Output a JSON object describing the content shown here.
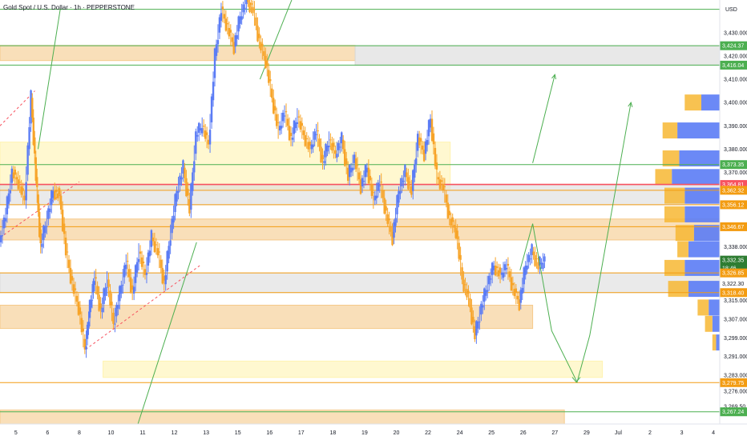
{
  "chart_data": {
    "type": "line",
    "title": "Gold Spot / U.S. Dollar · 1h · PEPPERSTONE",
    "currency": "USD",
    "ylim": [
      3262,
      3444
    ],
    "y_ticks": [
      3430,
      3420,
      3410,
      3400,
      3390,
      3380,
      3370,
      3338,
      3315,
      3307,
      3299,
      3291,
      3283,
      3276,
      3269.5
    ],
    "x_ticks": [
      {
        "label": "5",
        "x": 0.5
      },
      {
        "label": "6",
        "x": 1.5
      },
      {
        "label": "8",
        "x": 2.5
      },
      {
        "label": "10",
        "x": 3.5
      },
      {
        "label": "11",
        "x": 4.5
      },
      {
        "label": "12",
        "x": 5.5
      },
      {
        "label": "13",
        "x": 6.5
      },
      {
        "label": "15",
        "x": 7.5
      },
      {
        "label": "16",
        "x": 8.5
      },
      {
        "label": "17",
        "x": 9.5
      },
      {
        "label": "18",
        "x": 10.5
      },
      {
        "label": "19",
        "x": 11.5
      },
      {
        "label": "20",
        "x": 12.5
      },
      {
        "label": "22",
        "x": 13.5
      },
      {
        "label": "24",
        "x": 14.5
      },
      {
        "label": "25",
        "x": 15.5
      },
      {
        "label": "26",
        "x": 16.5
      },
      {
        "label": "27",
        "x": 17.5
      },
      {
        "label": "29",
        "x": 18.5
      },
      {
        "label": "Jul",
        "x": 19.5
      },
      {
        "label": "2",
        "x": 20.5
      },
      {
        "label": "3",
        "x": 21.5
      },
      {
        "label": "4",
        "x": 22.5
      }
    ],
    "series": [
      {
        "values": [
          [
            0,
            3340
          ],
          [
            0.2,
            3352
          ],
          [
            0.4,
            3370
          ],
          [
            0.6,
            3366
          ],
          [
            0.8,
            3358
          ],
          [
            1.0,
            3402
          ],
          [
            1.15,
            3368
          ],
          [
            1.3,
            3338
          ],
          [
            1.5,
            3350
          ],
          [
            1.7,
            3362
          ],
          [
            1.9,
            3360
          ],
          [
            2.1,
            3336
          ],
          [
            2.3,
            3322
          ],
          [
            2.5,
            3312
          ],
          [
            2.7,
            3294
          ],
          [
            2.85,
            3312
          ],
          [
            3.0,
            3325
          ],
          [
            3.2,
            3310
          ],
          [
            3.4,
            3324
          ],
          [
            3.6,
            3305
          ],
          [
            3.8,
            3318
          ],
          [
            4.0,
            3332
          ],
          [
            4.2,
            3318
          ],
          [
            4.4,
            3336
          ],
          [
            4.6,
            3326
          ],
          [
            4.8,
            3342
          ],
          [
            5.0,
            3336
          ],
          [
            5.2,
            3322
          ],
          [
            5.4,
            3344
          ],
          [
            5.6,
            3362
          ],
          [
            5.8,
            3372
          ],
          [
            6.0,
            3354
          ],
          [
            6.2,
            3386
          ],
          [
            6.4,
            3390
          ],
          [
            6.6,
            3382
          ],
          [
            6.8,
            3420
          ],
          [
            7.0,
            3440
          ],
          [
            7.2,
            3432
          ],
          [
            7.4,
            3424
          ],
          [
            7.6,
            3437
          ],
          [
            7.8,
            3444
          ],
          [
            8.0,
            3440
          ],
          [
            8.2,
            3426
          ],
          [
            8.4,
            3418
          ],
          [
            8.6,
            3402
          ],
          [
            8.8,
            3388
          ],
          [
            9.0,
            3396
          ],
          [
            9.2,
            3384
          ],
          [
            9.4,
            3394
          ],
          [
            9.6,
            3386
          ],
          [
            9.8,
            3380
          ],
          [
            10.0,
            3388
          ],
          [
            10.2,
            3374
          ],
          [
            10.4,
            3384
          ],
          [
            10.6,
            3378
          ],
          [
            10.8,
            3384
          ],
          [
            11.0,
            3368
          ],
          [
            11.2,
            3376
          ],
          [
            11.4,
            3364
          ],
          [
            11.6,
            3372
          ],
          [
            11.8,
            3358
          ],
          [
            12.0,
            3366
          ],
          [
            12.2,
            3352
          ],
          [
            12.4,
            3342
          ],
          [
            12.6,
            3362
          ],
          [
            12.8,
            3370
          ],
          [
            13.0,
            3362
          ],
          [
            13.2,
            3385
          ],
          [
            13.4,
            3378
          ],
          [
            13.6,
            3393
          ],
          [
            13.8,
            3368
          ],
          [
            14.0,
            3364
          ],
          [
            14.2,
            3350
          ],
          [
            14.4,
            3345
          ],
          [
            14.6,
            3324
          ],
          [
            14.8,
            3316
          ],
          [
            15.0,
            3300
          ],
          [
            15.2,
            3312
          ],
          [
            15.4,
            3322
          ],
          [
            15.6,
            3330
          ],
          [
            15.8,
            3326
          ],
          [
            16.0,
            3330
          ],
          [
            16.2,
            3320
          ],
          [
            16.4,
            3314
          ],
          [
            16.6,
            3330
          ],
          [
            16.8,
            3336
          ],
          [
            17.0,
            3330
          ],
          [
            17.2,
            3332.35
          ]
        ]
      }
    ],
    "price_labels": [
      {
        "text": "3,424.37",
        "value": 3424.37,
        "color": "#4caf50"
      },
      {
        "text": "3,416.04",
        "value": 3416.04,
        "color": "#4caf50"
      },
      {
        "text": "3,373.35",
        "value": 3373.35,
        "color": "#4caf50"
      },
      {
        "text": "3,364.81",
        "value": 3364.81,
        "color": "#f7525f"
      },
      {
        "text": "3,362.32",
        "value": 3362.32,
        "color": "#f39c12"
      },
      {
        "text": "3,356.12",
        "value": 3356.12,
        "color": "#f39c12"
      },
      {
        "text": "3,346.67",
        "value": 3346.67,
        "color": "#f39c12"
      },
      {
        "text": "3,332.35",
        "value": 3332.35,
        "color": "#2e7d32"
      },
      {
        "text": "18:46",
        "value": 3329.0,
        "color": "#2e7d32"
      },
      {
        "text": "3,326.85",
        "value": 3326.85,
        "color": "#f39c12"
      },
      {
        "text": "3,322.30",
        "value": 3322.3,
        "color": "#ffffff"
      },
      {
        "text": "3,318.40",
        "value": 3318.4,
        "color": "#f39c12"
      },
      {
        "text": "3,279.75",
        "value": 3279.75,
        "color": "#f39c12"
      },
      {
        "text": "3,267.24",
        "value": 3267.24,
        "color": "#4caf50"
      }
    ],
    "zones": [
      {
        "y1": 3424.5,
        "y2": 3418,
        "x1": 0,
        "x2": 11.2,
        "color": "#f5c98a"
      },
      {
        "y1": 3424.37,
        "y2": 3416.04,
        "x1": 11.2,
        "x2": 22.7,
        "color": "#d8d8d8"
      },
      {
        "y1": 3383,
        "y2": 3363,
        "x1": 0,
        "x2": 14.2,
        "color": "#fff3b0"
      },
      {
        "y1": 3364.81,
        "y2": 3356.12,
        "x1": 0,
        "x2": 22.7,
        "color": "#dcdcdc"
      },
      {
        "y1": 3350,
        "y2": 3341,
        "x1": 0,
        "x2": 22.7,
        "color": "#f5c98a"
      },
      {
        "y1": 3326.85,
        "y2": 3318.4,
        "x1": 0,
        "x2": 22.7,
        "color": "#dcdcdc"
      },
      {
        "y1": 3313,
        "y2": 3303,
        "x1": 0,
        "x2": 16.8,
        "color": "#f5c98a"
      },
      {
        "y1": 3289,
        "y2": 3282,
        "x1": 3.25,
        "x2": 19.0,
        "color": "#fff3b0"
      },
      {
        "y1": 3268,
        "y2": 3262,
        "x1": 0,
        "x2": 17.8,
        "color": "#f5c98a"
      }
    ],
    "levels": [
      {
        "value": 3440,
        "color": "#4caf50"
      },
      {
        "value": 3424.37,
        "color": "#4caf50"
      },
      {
        "value": 3416.04,
        "color": "#4caf50"
      },
      {
        "value": 3373.35,
        "color": "#4caf50"
      },
      {
        "value": 3364.81,
        "color": "#f7525f"
      },
      {
        "value": 3362.32,
        "color": "#f39c12"
      },
      {
        "value": 3356.12,
        "color": "#f39c12"
      },
      {
        "value": 3346.67,
        "color": "#f39c12"
      },
      {
        "value": 3326.85,
        "color": "#f39c12"
      },
      {
        "value": 3318.4,
        "color": "#f39c12"
      },
      {
        "value": 3279.75,
        "color": "#f39c12"
      },
      {
        "value": 3267.24,
        "color": "#4caf50"
      }
    ],
    "forecast_path": [
      [
        16.4,
        3328
      ],
      [
        16.8,
        3348
      ],
      [
        17.4,
        3302
      ],
      [
        18.2,
        3280
      ],
      [
        18.6,
        3300
      ],
      [
        19.9,
        3400
      ]
    ],
    "forecast_path2": [
      [
        16.8,
        3374
      ],
      [
        17.5,
        3412
      ]
    ],
    "trend_lines": [
      {
        "from": [
          0,
          3390
        ],
        "to": [
          1.1,
          3405
        ],
        "color": "#f7525f",
        "dashed": true
      },
      {
        "from": [
          2.7,
          3294
        ],
        "to": [
          6.3,
          3330
        ],
        "color": "#f7525f",
        "dashed": true
      },
      {
        "from": [
          0,
          3342
        ],
        "to": [
          2.5,
          3366
        ],
        "color": "#f7525f",
        "dashed": true
      },
      {
        "from": [
          1.2,
          3380
        ],
        "to": [
          1.9,
          3440
        ],
        "color": "#4caf50",
        "dashed": false
      },
      {
        "from": [
          4.35,
          3262
        ],
        "to": [
          6.2,
          3340
        ],
        "color": "#4caf50",
        "dashed": false
      },
      {
        "from": [
          8.2,
          3410
        ],
        "to": [
          9.2,
          3444
        ],
        "color": "#4caf50",
        "dashed": false
      }
    ],
    "volume_profile": [
      {
        "value": 3400,
        "up": 0.45,
        "down": 0.5
      },
      {
        "value": 3388,
        "up": 0.4,
        "down": 1.15
      },
      {
        "value": 3376,
        "up": 0.45,
        "down": 1.1
      },
      {
        "value": 3368,
        "up": 0.45,
        "down": 1.3
      },
      {
        "value": 3360,
        "up": 0.55,
        "down": 0.95
      },
      {
        "value": 3352,
        "up": 0.55,
        "down": 0.95
      },
      {
        "value": 3344,
        "up": 0.5,
        "down": 0.7
      },
      {
        "value": 3337,
        "up": 0.3,
        "down": 0.85
      },
      {
        "value": 3329,
        "up": 0.55,
        "down": 0.95
      },
      {
        "value": 3320,
        "up": 0.55,
        "down": 0.85
      },
      {
        "value": 3312,
        "up": 0.3,
        "down": 0.3
      },
      {
        "value": 3305,
        "up": 0.2,
        "down": 0.2
      },
      {
        "value": 3297,
        "up": 0.1,
        "down": 0.1
      }
    ]
  }
}
